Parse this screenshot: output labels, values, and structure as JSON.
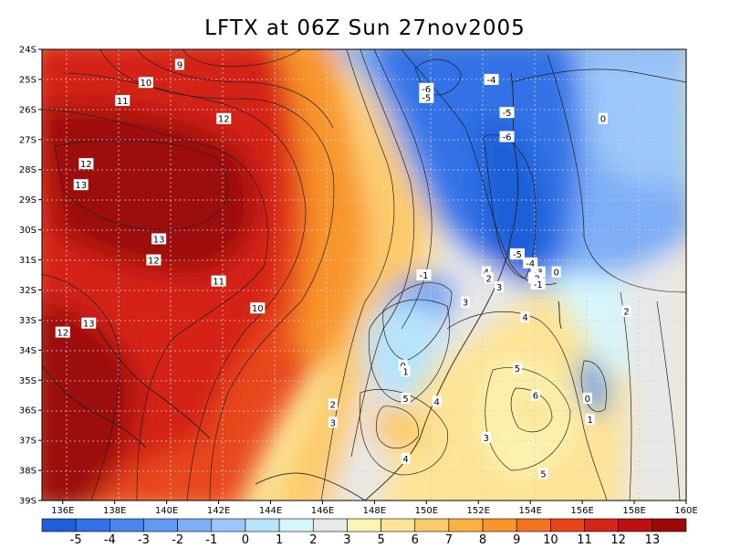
{
  "title": "LFTX at 06Z Sun 27nov2005",
  "map": {
    "lat_labels": [
      "24S",
      "25S",
      "26S",
      "27S",
      "28S",
      "29S",
      "30S",
      "31S",
      "32S",
      "33S",
      "34S",
      "35S",
      "36S",
      "37S",
      "38S",
      "39S"
    ],
    "lon_labels": [
      "136E",
      "138E",
      "140E",
      "142E",
      "144E",
      "146E",
      "148E",
      "150E",
      "152E",
      "154E",
      "156E",
      "158E",
      "160E"
    ],
    "lat_range": [
      -39,
      -24
    ],
    "lon_range": [
      135.2,
      160
    ]
  },
  "colorbar": {
    "labels": [
      "-5",
      "-4",
      "-3",
      "-2",
      "-1",
      "0",
      "1",
      "2",
      "3",
      "5",
      "6",
      "7",
      "8",
      "9",
      "10",
      "11",
      "12",
      "13"
    ],
    "colors": [
      "#1e5fd8",
      "#3272e6",
      "#4a86ee",
      "#629af2",
      "#7eaef6",
      "#9cc7fa",
      "#b6e4fc",
      "#d6f6fc",
      "#e8e8e8",
      "#faf5b4",
      "#fde496",
      "#fcca6a",
      "#fbb141",
      "#f8952a",
      "#f37220",
      "#e8461a",
      "#d42416",
      "#be1010",
      "#9c0808"
    ]
  },
  "contour_labels": [
    {
      "text": "9",
      "lon": 140.5,
      "lat": -24.5
    },
    {
      "text": "10",
      "lon": 139.2,
      "lat": -25.1
    },
    {
      "text": "11",
      "lon": 138.3,
      "lat": -25.7
    },
    {
      "text": "12",
      "lon": 142.2,
      "lat": -26.3
    },
    {
      "text": "12",
      "lon": 136.9,
      "lat": -27.8
    },
    {
      "text": "13",
      "lon": 136.7,
      "lat": -28.5
    },
    {
      "text": "13",
      "lon": 139.7,
      "lat": -30.3
    },
    {
      "text": "12",
      "lon": 139.5,
      "lat": -31.0
    },
    {
      "text": "11",
      "lon": 142.0,
      "lat": -31.7
    },
    {
      "text": "10",
      "lon": 143.5,
      "lat": -32.6
    },
    {
      "text": "13",
      "lon": 137.0,
      "lat": -33.1
    },
    {
      "text": "12",
      "lon": 136.0,
      "lat": -33.4
    },
    {
      "text": "-6",
      "lon": 150.0,
      "lat": -25.3
    },
    {
      "text": "-5",
      "lon": 150.0,
      "lat": -25.6
    },
    {
      "text": "-4",
      "lon": 152.5,
      "lat": -25.0
    },
    {
      "text": "-5",
      "lon": 153.1,
      "lat": -26.1
    },
    {
      "text": "-6",
      "lon": 153.1,
      "lat": -26.9
    },
    {
      "text": "0",
      "lon": 156.8,
      "lat": -26.3
    },
    {
      "text": "-5",
      "lon": 153.5,
      "lat": -30.8
    },
    {
      "text": "-4",
      "lon": 154.0,
      "lat": -31.1
    },
    {
      "text": "-3",
      "lon": 154.3,
      "lat": -31.4
    },
    {
      "text": "-2",
      "lon": 154.2,
      "lat": -31.6
    },
    {
      "text": "-1",
      "lon": 154.3,
      "lat": -31.8
    },
    {
      "text": "0",
      "lon": 155.0,
      "lat": -31.4
    },
    {
      "text": "-1",
      "lon": 149.9,
      "lat": -31.5
    },
    {
      "text": "4",
      "lon": 152.3,
      "lat": -31.4
    },
    {
      "text": "2",
      "lon": 152.4,
      "lat": -31.6
    },
    {
      "text": "3",
      "lon": 152.8,
      "lat": -31.9
    },
    {
      "text": "3",
      "lon": 151.5,
      "lat": -32.4
    },
    {
      "text": "4",
      "lon": 153.8,
      "lat": -32.9
    },
    {
      "text": "2",
      "lon": 157.7,
      "lat": -32.7
    },
    {
      "text": "0",
      "lon": 149.1,
      "lat": -34.5
    },
    {
      "text": "1",
      "lon": 149.2,
      "lat": -34.7
    },
    {
      "text": "5",
      "lon": 153.5,
      "lat": -34.6
    },
    {
      "text": "6",
      "lon": 154.2,
      "lat": -35.5
    },
    {
      "text": "0",
      "lon": 156.2,
      "lat": -35.6
    },
    {
      "text": "1",
      "lon": 156.3,
      "lat": -36.3
    },
    {
      "text": "2",
      "lon": 146.4,
      "lat": -35.8
    },
    {
      "text": "3",
      "lon": 146.4,
      "lat": -36.4
    },
    {
      "text": "5",
      "lon": 149.2,
      "lat": -35.6
    },
    {
      "text": "4",
      "lon": 150.4,
      "lat": -35.7
    },
    {
      "text": "3",
      "lon": 152.3,
      "lat": -36.9
    },
    {
      "text": "4",
      "lon": 149.2,
      "lat": -37.6
    },
    {
      "text": "5",
      "lon": 154.5,
      "lat": -38.1
    }
  ]
}
